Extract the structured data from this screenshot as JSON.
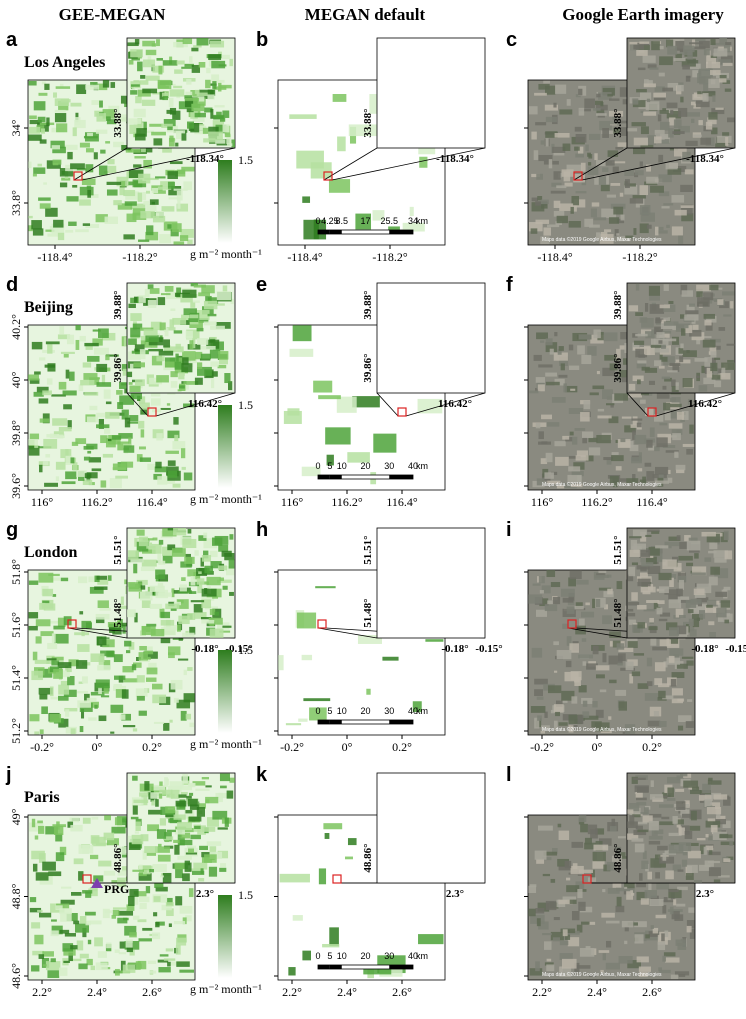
{
  "columns": [
    "GEE-MEGAN",
    "MEGAN default",
    "Google Earth imagery"
  ],
  "colorbar": {
    "max": "1.5",
    "unit": "g m⁻² month⁻¹"
  },
  "attribution": "Maps data ©2019 Google  Airbus, Maxar Technologies",
  "marker": "PRG",
  "rows": [
    {
      "city": "Los Angeles",
      "panels": [
        "a",
        "b",
        "c"
      ],
      "xticks": [
        "-118.4°",
        "-118.2°"
      ],
      "yticks": [
        "34°",
        "33.8°"
      ],
      "inset_x": "-118.34°",
      "inset_y": "33.88°",
      "scalebar": [
        "0",
        "4.25",
        "8.5",
        "17",
        "25.5",
        "34",
        "km"
      ]
    },
    {
      "city": "Beijing",
      "panels": [
        "d",
        "e",
        "f"
      ],
      "xticks": [
        "116°",
        "116.2°",
        "116.4°"
      ],
      "yticks": [
        "40.2°",
        "40°",
        "39.8°",
        "39.6°"
      ],
      "inset_x": "116.42°",
      "inset_y": "39.86°",
      "inset_y2": "39.88°",
      "scalebar": [
        "0",
        "5",
        "10",
        "20",
        "30",
        "40",
        "km"
      ]
    },
    {
      "city": "London",
      "panels": [
        "g",
        "h",
        "i"
      ],
      "xticks": [
        "-0.2°",
        "0°",
        "0.2°"
      ],
      "yticks": [
        "51.8°",
        "51.6°",
        "51.4°",
        "51.2°"
      ],
      "inset_x": "-0.18°",
      "inset_x2": "-0.15°",
      "inset_y": "51.48°",
      "inset_y2": "51.51°",
      "scalebar": [
        "0",
        "5",
        "10",
        "20",
        "30",
        "40",
        "km"
      ]
    },
    {
      "city": "Paris",
      "panels": [
        "j",
        "k",
        "l"
      ],
      "xticks": [
        "2.2°",
        "2.4°",
        "2.6°"
      ],
      "yticks": [
        "49°",
        "48.8°",
        "48.6°"
      ],
      "inset_x": "2.3°",
      "inset_y": "48.86°",
      "scalebar": [
        "0",
        "5",
        "10",
        "20",
        "30",
        "40",
        "km"
      ]
    }
  ]
}
